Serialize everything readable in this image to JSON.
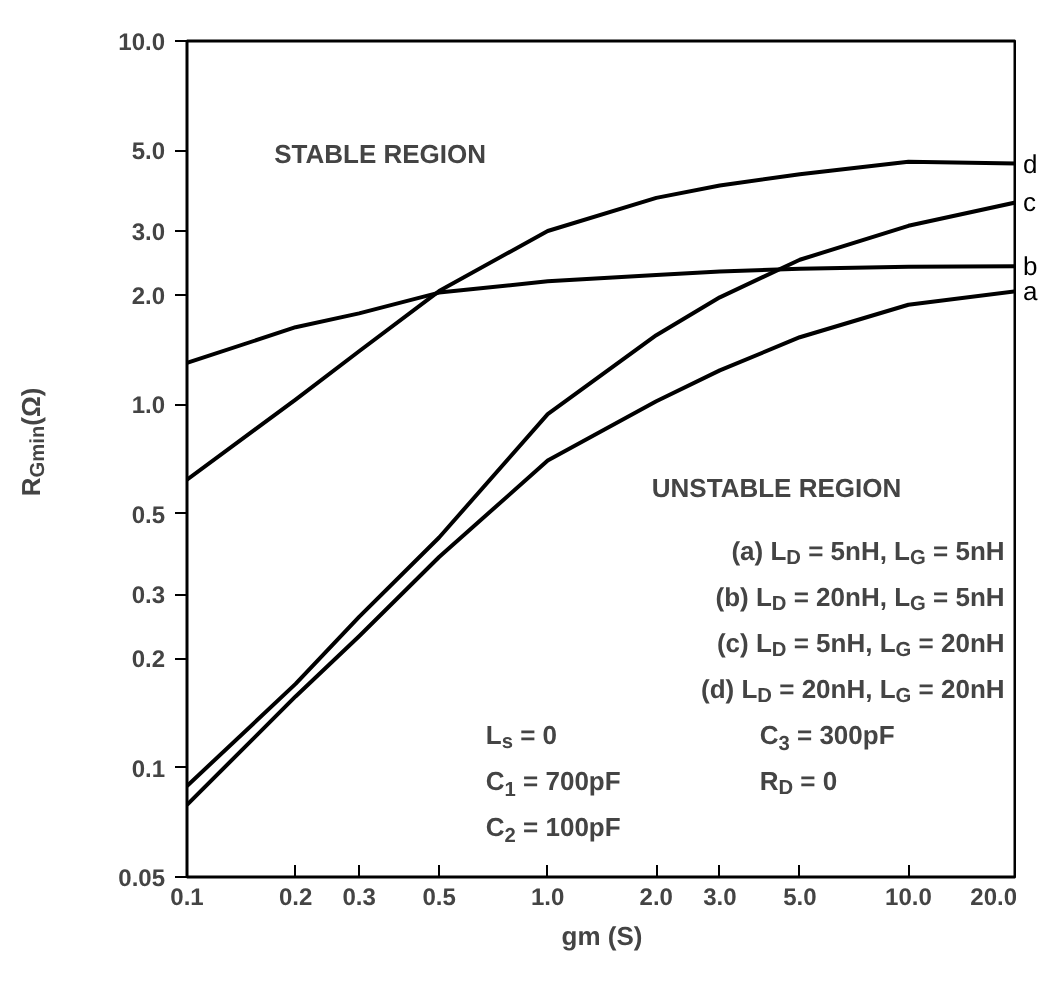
{
  "chart_data": {
    "type": "line",
    "xlabel": "gm (S)",
    "ylabel": "R$_{Gmin}$(Ω)",
    "log": "xy",
    "grid": false,
    "marker": "none",
    "line_style": "solid",
    "x": [
      0.1,
      0.2,
      0.3,
      0.5,
      1,
      2,
      3,
      5,
      10,
      20
    ],
    "xlim": [
      0.1,
      20
    ],
    "ylim": [
      0.05,
      10
    ],
    "xticks": [
      {
        "value": 0.1,
        "label": "0.1"
      },
      {
        "value": 0.2,
        "label": "0.2"
      },
      {
        "value": 0.3,
        "label": "0.3"
      },
      {
        "value": 0.5,
        "label": "0.5"
      },
      {
        "value": 1,
        "label": "1.0"
      },
      {
        "value": 2,
        "label": "2.0"
      },
      {
        "value": 3,
        "label": "3.0"
      },
      {
        "value": 5,
        "label": "5.0"
      },
      {
        "value": 10,
        "label": "10.0"
      },
      {
        "value": 20,
        "label": "20.0"
      }
    ],
    "yticks": [
      0.05,
      0.1,
      0.2,
      0.3,
      0.5,
      {
        "value": 1,
        "label": "1.0"
      },
      {
        "value": 2,
        "label": "2.0"
      },
      {
        "value": 3,
        "label": "3.0"
      },
      {
        "value": 5,
        "label": "5.0"
      },
      {
        "value": 10,
        "label": "10.0"
      }
    ],
    "series": [
      {
        "name": "d",
        "color": "#000000",
        "values": [
          0.62,
          1.03,
          1.4,
          2.05,
          3.0,
          3.7,
          4.0,
          4.3,
          4.65,
          4.6
        ]
      },
      {
        "name": "c",
        "color": "#000000",
        "values": [
          0.089,
          0.17,
          0.26,
          0.43,
          0.94,
          1.55,
          1.97,
          2.5,
          3.1,
          3.6
        ]
      },
      {
        "name": "b",
        "color": "#000000",
        "values": [
          1.3,
          1.63,
          1.78,
          2.03,
          2.18,
          2.27,
          2.32,
          2.36,
          2.39,
          2.4
        ]
      },
      {
        "name": "a",
        "color": "#000000",
        "values": [
          0.079,
          0.157,
          0.23,
          0.38,
          0.7,
          1.02,
          1.24,
          1.53,
          1.88,
          2.05
        ]
      }
    ],
    "annotations": [
      "STABLE REGION",
      "UNSTABLE REGION",
      "(a) L$_{D}$ = 5nH, L$_{G}$ = 5nH",
      "(b) L$_{D}$ = 20nH, L$_{G}$ = 5nH",
      "(c) L$_{D}$ = 5nH, L$_{G}$ = 20nH",
      "(d) L$_{D}$ = 20nH, L$_{G}$ = 20nH",
      "L$_{s}$ = 0",
      "C$_{3}$ = 300pF",
      "C$_{1}$ = 700pF",
      "R$_{D}$ = 0",
      "C$_{2}$ = 100pF"
    ]
  }
}
